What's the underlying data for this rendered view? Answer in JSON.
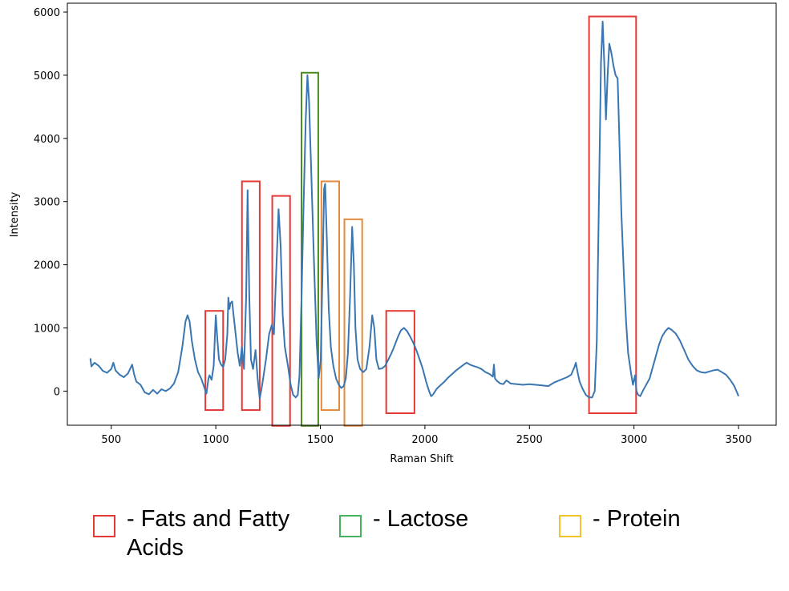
{
  "chart_data": {
    "type": "line",
    "xlabel": "Raman Shift",
    "ylabel": "Intensity",
    "xlim": [
      290,
      3680
    ],
    "ylim": [
      -540,
      6140
    ],
    "xticks": [
      500,
      1000,
      1500,
      2000,
      2500,
      3000,
      3500
    ],
    "yticks": [
      0,
      1000,
      2000,
      3000,
      4000,
      5000,
      6000
    ],
    "series": [
      {
        "color": "#3a76b1",
        "points": [
          [
            400,
            520
          ],
          [
            405,
            390
          ],
          [
            420,
            450
          ],
          [
            440,
            400
          ],
          [
            460,
            320
          ],
          [
            480,
            290
          ],
          [
            500,
            350
          ],
          [
            510,
            450
          ],
          [
            520,
            330
          ],
          [
            540,
            260
          ],
          [
            560,
            220
          ],
          [
            580,
            280
          ],
          [
            600,
            420
          ],
          [
            610,
            260
          ],
          [
            620,
            150
          ],
          [
            640,
            100
          ],
          [
            660,
            -20
          ],
          [
            680,
            -50
          ],
          [
            700,
            20
          ],
          [
            720,
            -40
          ],
          [
            740,
            30
          ],
          [
            760,
            0
          ],
          [
            780,
            40
          ],
          [
            800,
            120
          ],
          [
            820,
            300
          ],
          [
            840,
            700
          ],
          [
            855,
            1100
          ],
          [
            865,
            1200
          ],
          [
            875,
            1100
          ],
          [
            885,
            800
          ],
          [
            900,
            500
          ],
          [
            915,
            300
          ],
          [
            930,
            200
          ],
          [
            945,
            60
          ],
          [
            955,
            -40
          ],
          [
            965,
            200
          ],
          [
            970,
            250
          ],
          [
            980,
            180
          ],
          [
            990,
            400
          ],
          [
            1000,
            1200
          ],
          [
            1008,
            800
          ],
          [
            1015,
            500
          ],
          [
            1025,
            420
          ],
          [
            1035,
            380
          ],
          [
            1045,
            500
          ],
          [
            1055,
            900
          ],
          [
            1060,
            1480
          ],
          [
            1065,
            1300
          ],
          [
            1070,
            1390
          ],
          [
            1078,
            1420
          ],
          [
            1085,
            1200
          ],
          [
            1095,
            900
          ],
          [
            1105,
            600
          ],
          [
            1115,
            400
          ],
          [
            1125,
            700
          ],
          [
            1135,
            350
          ],
          [
            1145,
            1500
          ],
          [
            1152,
            3180
          ],
          [
            1160,
            1500
          ],
          [
            1168,
            500
          ],
          [
            1178,
            350
          ],
          [
            1190,
            650
          ],
          [
            1200,
            200
          ],
          [
            1210,
            -120
          ],
          [
            1222,
            100
          ],
          [
            1240,
            500
          ],
          [
            1255,
            900
          ],
          [
            1268,
            1050
          ],
          [
            1278,
            900
          ],
          [
            1290,
            2000
          ],
          [
            1300,
            2880
          ],
          [
            1310,
            2300
          ],
          [
            1320,
            1200
          ],
          [
            1330,
            700
          ],
          [
            1345,
            400
          ],
          [
            1358,
            100
          ],
          [
            1370,
            -60
          ],
          [
            1382,
            -100
          ],
          [
            1392,
            -60
          ],
          [
            1400,
            250
          ],
          [
            1410,
            1500
          ],
          [
            1420,
            3000
          ],
          [
            1430,
            4300
          ],
          [
            1438,
            5000
          ],
          [
            1446,
            4600
          ],
          [
            1456,
            3500
          ],
          [
            1470,
            2000
          ],
          [
            1482,
            800
          ],
          [
            1492,
            200
          ],
          [
            1502,
            500
          ],
          [
            1510,
            1800
          ],
          [
            1518,
            3200
          ],
          [
            1523,
            3280
          ],
          [
            1530,
            2500
          ],
          [
            1540,
            1300
          ],
          [
            1550,
            700
          ],
          [
            1562,
            400
          ],
          [
            1575,
            200
          ],
          [
            1588,
            100
          ],
          [
            1600,
            50
          ],
          [
            1612,
            80
          ],
          [
            1622,
            200
          ],
          [
            1632,
            600
          ],
          [
            1642,
            1500
          ],
          [
            1652,
            2600
          ],
          [
            1660,
            2000
          ],
          [
            1668,
            1000
          ],
          [
            1678,
            500
          ],
          [
            1690,
            350
          ],
          [
            1705,
            300
          ],
          [
            1720,
            350
          ],
          [
            1735,
            700
          ],
          [
            1748,
            1200
          ],
          [
            1758,
            1000
          ],
          [
            1768,
            500
          ],
          [
            1780,
            350
          ],
          [
            1795,
            360
          ],
          [
            1810,
            400
          ],
          [
            1825,
            500
          ],
          [
            1840,
            600
          ],
          [
            1855,
            720
          ],
          [
            1870,
            850
          ],
          [
            1885,
            960
          ],
          [
            1900,
            1000
          ],
          [
            1915,
            950
          ],
          [
            1930,
            860
          ],
          [
            1945,
            760
          ],
          [
            1960,
            640
          ],
          [
            1975,
            500
          ],
          [
            1990,
            350
          ],
          [
            2005,
            160
          ],
          [
            2020,
            0
          ],
          [
            2030,
            -80
          ],
          [
            2040,
            -50
          ],
          [
            2055,
            30
          ],
          [
            2070,
            80
          ],
          [
            2090,
            140
          ],
          [
            2110,
            210
          ],
          [
            2130,
            270
          ],
          [
            2150,
            330
          ],
          [
            2170,
            380
          ],
          [
            2190,
            430
          ],
          [
            2200,
            450
          ],
          [
            2215,
            420
          ],
          [
            2230,
            400
          ],
          [
            2250,
            380
          ],
          [
            2270,
            350
          ],
          [
            2290,
            300
          ],
          [
            2310,
            270
          ],
          [
            2325,
            230
          ],
          [
            2330,
            420
          ],
          [
            2335,
            200
          ],
          [
            2345,
            160
          ],
          [
            2360,
            120
          ],
          [
            2375,
            110
          ],
          [
            2390,
            170
          ],
          [
            2410,
            120
          ],
          [
            2440,
            110
          ],
          [
            2470,
            100
          ],
          [
            2500,
            110
          ],
          [
            2530,
            100
          ],
          [
            2560,
            90
          ],
          [
            2590,
            80
          ],
          [
            2620,
            140
          ],
          [
            2650,
            180
          ],
          [
            2680,
            220
          ],
          [
            2700,
            260
          ],
          [
            2715,
            380
          ],
          [
            2722,
            450
          ],
          [
            2730,
            300
          ],
          [
            2740,
            150
          ],
          [
            2755,
            30
          ],
          [
            2770,
            -60
          ],
          [
            2785,
            -100
          ],
          [
            2800,
            -100
          ],
          [
            2812,
            0
          ],
          [
            2822,
            800
          ],
          [
            2832,
            3000
          ],
          [
            2842,
            5200
          ],
          [
            2850,
            5850
          ],
          [
            2858,
            5200
          ],
          [
            2866,
            4300
          ],
          [
            2874,
            5000
          ],
          [
            2882,
            5500
          ],
          [
            2892,
            5350
          ],
          [
            2902,
            5150
          ],
          [
            2912,
            5000
          ],
          [
            2922,
            4950
          ],
          [
            2930,
            4000
          ],
          [
            2940,
            2800
          ],
          [
            2952,
            1800
          ],
          [
            2962,
            1100
          ],
          [
            2972,
            600
          ],
          [
            2985,
            300
          ],
          [
            2995,
            100
          ],
          [
            3005,
            250
          ],
          [
            3012,
            0
          ],
          [
            3020,
            -60
          ],
          [
            3030,
            -80
          ],
          [
            3045,
            20
          ],
          [
            3060,
            110
          ],
          [
            3075,
            200
          ],
          [
            3090,
            380
          ],
          [
            3105,
            560
          ],
          [
            3120,
            740
          ],
          [
            3135,
            870
          ],
          [
            3150,
            950
          ],
          [
            3165,
            1000
          ],
          [
            3180,
            970
          ],
          [
            3200,
            910
          ],
          [
            3220,
            800
          ],
          [
            3240,
            650
          ],
          [
            3260,
            500
          ],
          [
            3280,
            400
          ],
          [
            3300,
            330
          ],
          [
            3320,
            300
          ],
          [
            3340,
            290
          ],
          [
            3360,
            310
          ],
          [
            3380,
            330
          ],
          [
            3400,
            340
          ],
          [
            3420,
            300
          ],
          [
            3440,
            260
          ],
          [
            3460,
            180
          ],
          [
            3480,
            80
          ],
          [
            3500,
            -80
          ]
        ]
      }
    ],
    "regions": [
      {
        "category": "fats",
        "x": [
          950,
          1035
        ],
        "y": [
          -300,
          1270
        ]
      },
      {
        "category": "fats",
        "x": [
          1125,
          1210
        ],
        "y": [
          -300,
          3320
        ]
      },
      {
        "category": "fats",
        "x": [
          1270,
          1355
        ],
        "y": [
          -550,
          3090
        ]
      },
      {
        "category": "lactose",
        "x": [
          1410,
          1490
        ],
        "y": [
          -550,
          5040
        ]
      },
      {
        "category": "protein",
        "x": [
          1505,
          1590
        ],
        "y": [
          -300,
          3320
        ]
      },
      {
        "category": "protein",
        "x": [
          1615,
          1700
        ],
        "y": [
          -550,
          2720
        ]
      },
      {
        "category": "fats",
        "x": [
          1815,
          1950
        ],
        "y": [
          -350,
          1270
        ]
      },
      {
        "category": "fats",
        "x": [
          2785,
          3010
        ],
        "y": [
          -350,
          5930
        ]
      }
    ],
    "region_colors": {
      "fats": "#e53935",
      "lactose": "#4a8a1e",
      "protein": "#e38a3c"
    }
  },
  "legend": {
    "items": [
      {
        "label": "- Fats and Fatty\nAcids",
        "color": "#e53935"
      },
      {
        "label": "- Lactose",
        "color": "#47b25c"
      },
      {
        "label": "- Protein",
        "color": "#f3c22d"
      }
    ]
  }
}
